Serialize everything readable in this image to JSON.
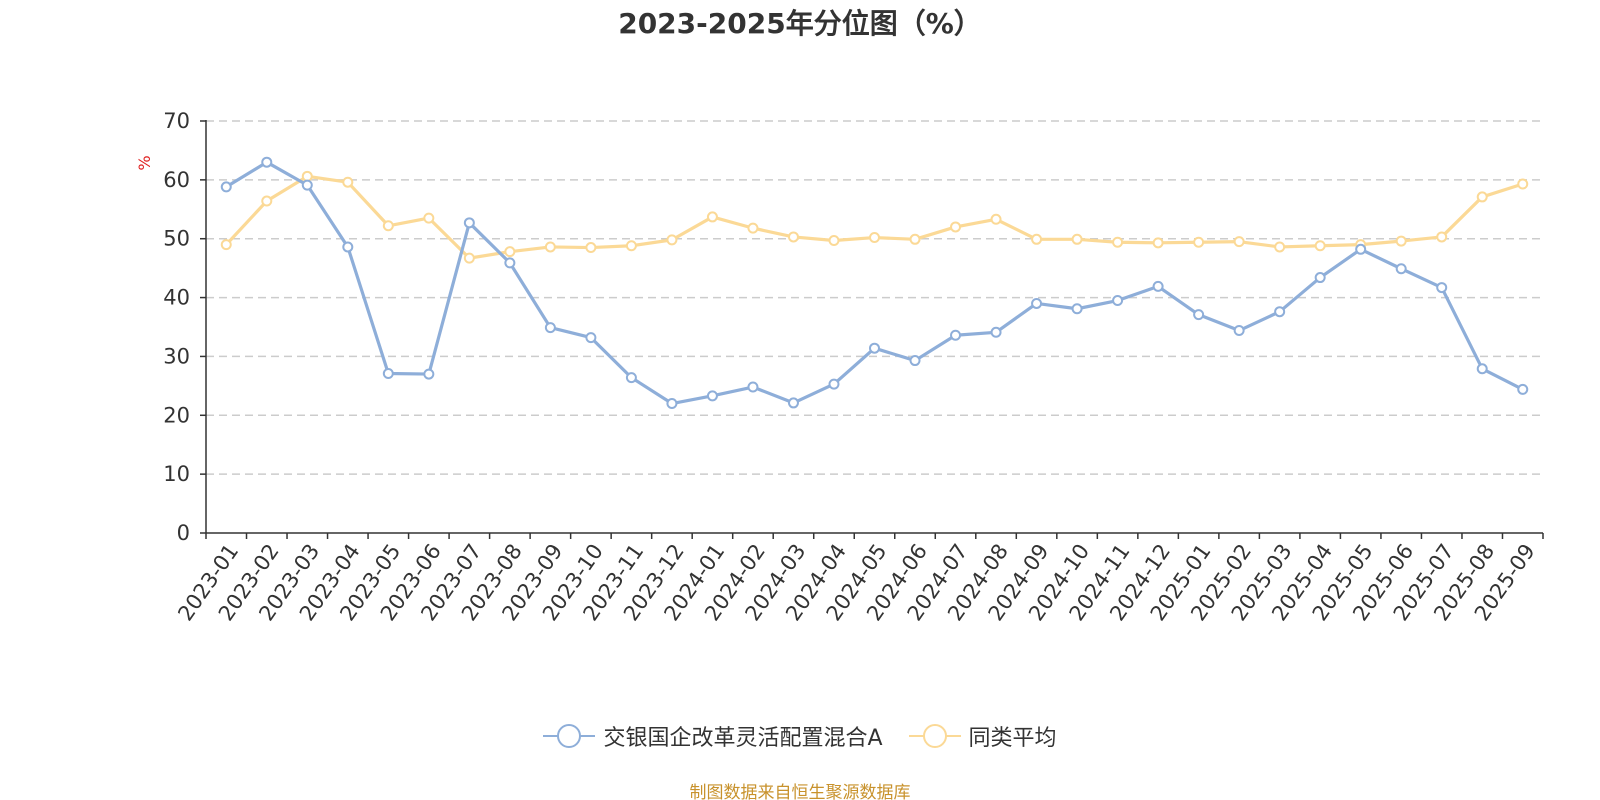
{
  "colors": {
    "series_a": "#8eaed9",
    "series_b": "#fbd996",
    "axis": "#333333",
    "grid": "#cccccc",
    "unit_label": "#e02020",
    "source": "#c8922c"
  },
  "chart_data": {
    "type": "line",
    "title": "2023-2025年分位图（%）",
    "ylabel": "%",
    "xlabel": "",
    "ylim": [
      0,
      70
    ],
    "yticks": [
      0,
      10,
      20,
      30,
      40,
      50,
      60,
      70
    ],
    "grid": "horizontal dashed",
    "legend_position": "bottom-center",
    "categories": [
      "2023-01",
      "2023-02",
      "2023-03",
      "2023-04",
      "2023-05",
      "2023-06",
      "2023-07",
      "2023-08",
      "2023-09",
      "2023-10",
      "2023-11",
      "2023-12",
      "2024-01",
      "2024-02",
      "2024-03",
      "2024-04",
      "2024-05",
      "2024-06",
      "2024-07",
      "2024-08",
      "2024-09",
      "2024-10",
      "2024-11",
      "2024-12",
      "2025-01",
      "2025-02",
      "2025-03",
      "2025-04",
      "2025-05",
      "2025-06",
      "2025-07",
      "2025-08",
      "2025-09"
    ],
    "series": [
      {
        "name": "交银国企改革灵活配置混合A",
        "values": [
          58.8,
          63.0,
          59.1,
          48.6,
          27.1,
          27.0,
          52.7,
          45.9,
          34.9,
          33.2,
          26.4,
          22.0,
          23.3,
          24.8,
          22.1,
          25.3,
          31.4,
          29.3,
          33.6,
          34.1,
          39.0,
          38.1,
          39.5,
          41.9,
          37.1,
          34.4,
          37.6,
          43.4,
          48.2,
          44.9,
          41.7,
          27.9,
          24.4
        ]
      },
      {
        "name": "同类平均",
        "values": [
          49.0,
          56.4,
          60.6,
          59.6,
          52.2,
          53.5,
          46.7,
          47.8,
          48.6,
          48.5,
          48.8,
          49.8,
          53.7,
          51.8,
          50.3,
          49.7,
          50.2,
          49.9,
          52.0,
          53.3,
          49.9,
          49.9,
          49.4,
          49.3,
          49.4,
          49.5,
          48.6,
          48.8,
          49.0,
          49.6,
          50.3,
          57.1,
          59.3
        ]
      }
    ]
  },
  "footer": {
    "source_note": "制图数据来自恒生聚源数据库"
  }
}
